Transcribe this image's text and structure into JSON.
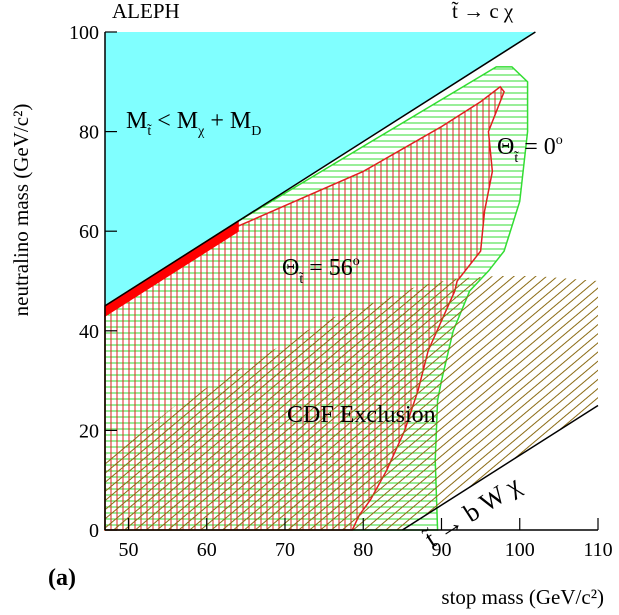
{
  "chart_data": {
    "type": "region",
    "xlabel": "stop mass (GeV/c²)",
    "ylabel": "neutralino mass (GeV/c²)",
    "xlim": [
      47,
      110
    ],
    "ylim": [
      0,
      100
    ],
    "xticks": [
      50,
      60,
      70,
      80,
      90,
      100,
      110
    ],
    "yticks": [
      0,
      20,
      40,
      60,
      80,
      100
    ],
    "regions": [
      {
        "x": [
          47,
          102,
          47
        ],
        "y": [
          45,
          100,
          100
        ],
        "color": "#80ffff",
        "hatch": "none"
      },
      {
        "x": [
          47,
          64,
          97,
          99,
          101,
          101,
          100,
          98,
          96,
          93.6,
          91.5,
          90,
          89.5,
          89.2,
          89.5,
          47
        ],
        "y": [
          45,
          62,
          93,
          93,
          90,
          80,
          66,
          56,
          52,
          48,
          40,
          30,
          26,
          14,
          0,
          0
        ],
        "color": "#33dd33",
        "hatch": "horizontal"
      },
      {
        "x": [
          47,
          64,
          80,
          90,
          95,
          97.5,
          98,
          97,
          96,
          96.5,
          95.5,
          95,
          93,
          92,
          91.7,
          90,
          88.3,
          87,
          85.3,
          83,
          80.9,
          79.5,
          78.6,
          47
        ],
        "y": [
          43,
          61,
          72,
          81,
          86,
          89,
          88,
          84,
          80,
          72,
          64,
          56,
          52,
          50,
          48,
          42,
          36,
          28,
          20,
          12,
          6,
          3,
          0,
          0
        ],
        "color": "#e02020",
        "hatch": "grid"
      },
      {
        "x": [
          47,
          64,
          64,
          47
        ],
        "y": [
          43,
          60,
          62,
          45
        ],
        "color": "#ff0000",
        "hatch": "solid"
      },
      {
        "x": [
          47,
          52,
          56,
          65,
          75,
          82,
          87,
          92,
          97,
          102,
          110,
          110,
          85,
          47
        ],
        "y": [
          15,
          20,
          25,
          33,
          42,
          46,
          49,
          50.5,
          51,
          51,
          50,
          25,
          0,
          0
        ],
        "color": "#8b6b14",
        "hatch": "diagonal"
      }
    ],
    "lines": [
      {
        "x": [
          47,
          102
        ],
        "y": [
          45,
          100
        ],
        "color": "#000000"
      },
      {
        "x": [
          85,
          110
        ],
        "y": [
          0,
          25
        ],
        "color": "#000000"
      }
    ],
    "annotations": {
      "experiment": "ALEPH",
      "decay_c": "t̃ → c χ",
      "kinematic": [
        "M",
        "t̃",
        " < M",
        "χ",
        " + M",
        "D"
      ],
      "theta0": [
        "Θ",
        "t̃",
        " = 0",
        "o"
      ],
      "theta56": [
        "Θ",
        "t̃",
        " = 56",
        "o"
      ],
      "cdf": "CDF Exclusion",
      "decay_b": "t̃ → b W χ",
      "panel": "(a)"
    }
  }
}
